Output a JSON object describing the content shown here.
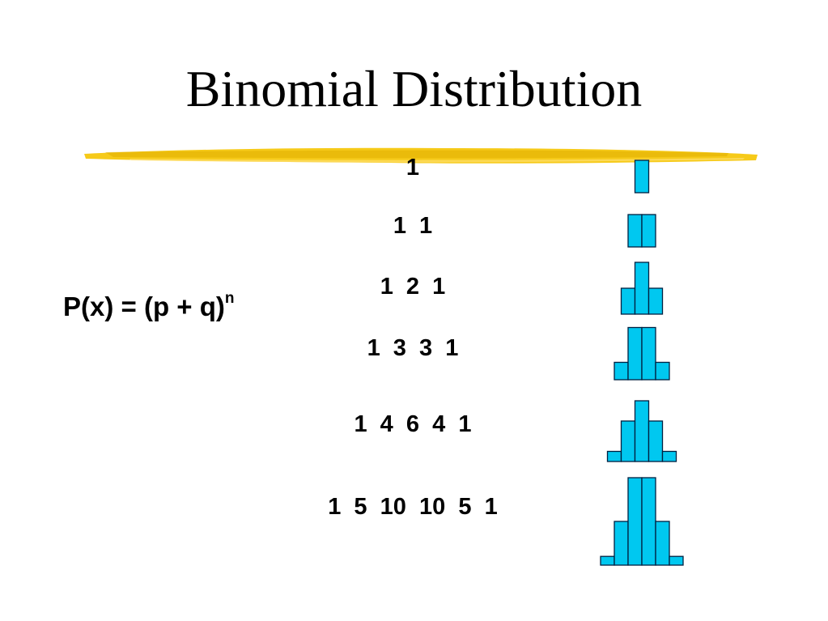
{
  "slide": {
    "title": "Binomial Distribution",
    "formula": {
      "base": "P(x) = (p + q)",
      "exponent": "n"
    }
  },
  "colors": {
    "bar_fill": "#00c8f0",
    "bar_stroke": "#002040",
    "highlighter": "#f5c400"
  },
  "chart_data": {
    "type": "bar",
    "title": "",
    "description_rows": "Pascal's triangle rows with matching histograms",
    "series": [
      {
        "values": [
          1
        ]
      },
      {
        "values": [
          1,
          1
        ]
      },
      {
        "values": [
          1,
          2,
          1
        ]
      },
      {
        "values": [
          1,
          3,
          3,
          1
        ]
      },
      {
        "values": [
          1,
          4,
          6,
          4,
          1
        ]
      },
      {
        "values": [
          1,
          5,
          10,
          10,
          5,
          1
        ]
      }
    ]
  },
  "pascal_rows": [
    "1",
    "1  1",
    "1  2  1",
    "1  3  3  1",
    "1  4  6  4  1",
    "1  5  10  10  5  1"
  ]
}
